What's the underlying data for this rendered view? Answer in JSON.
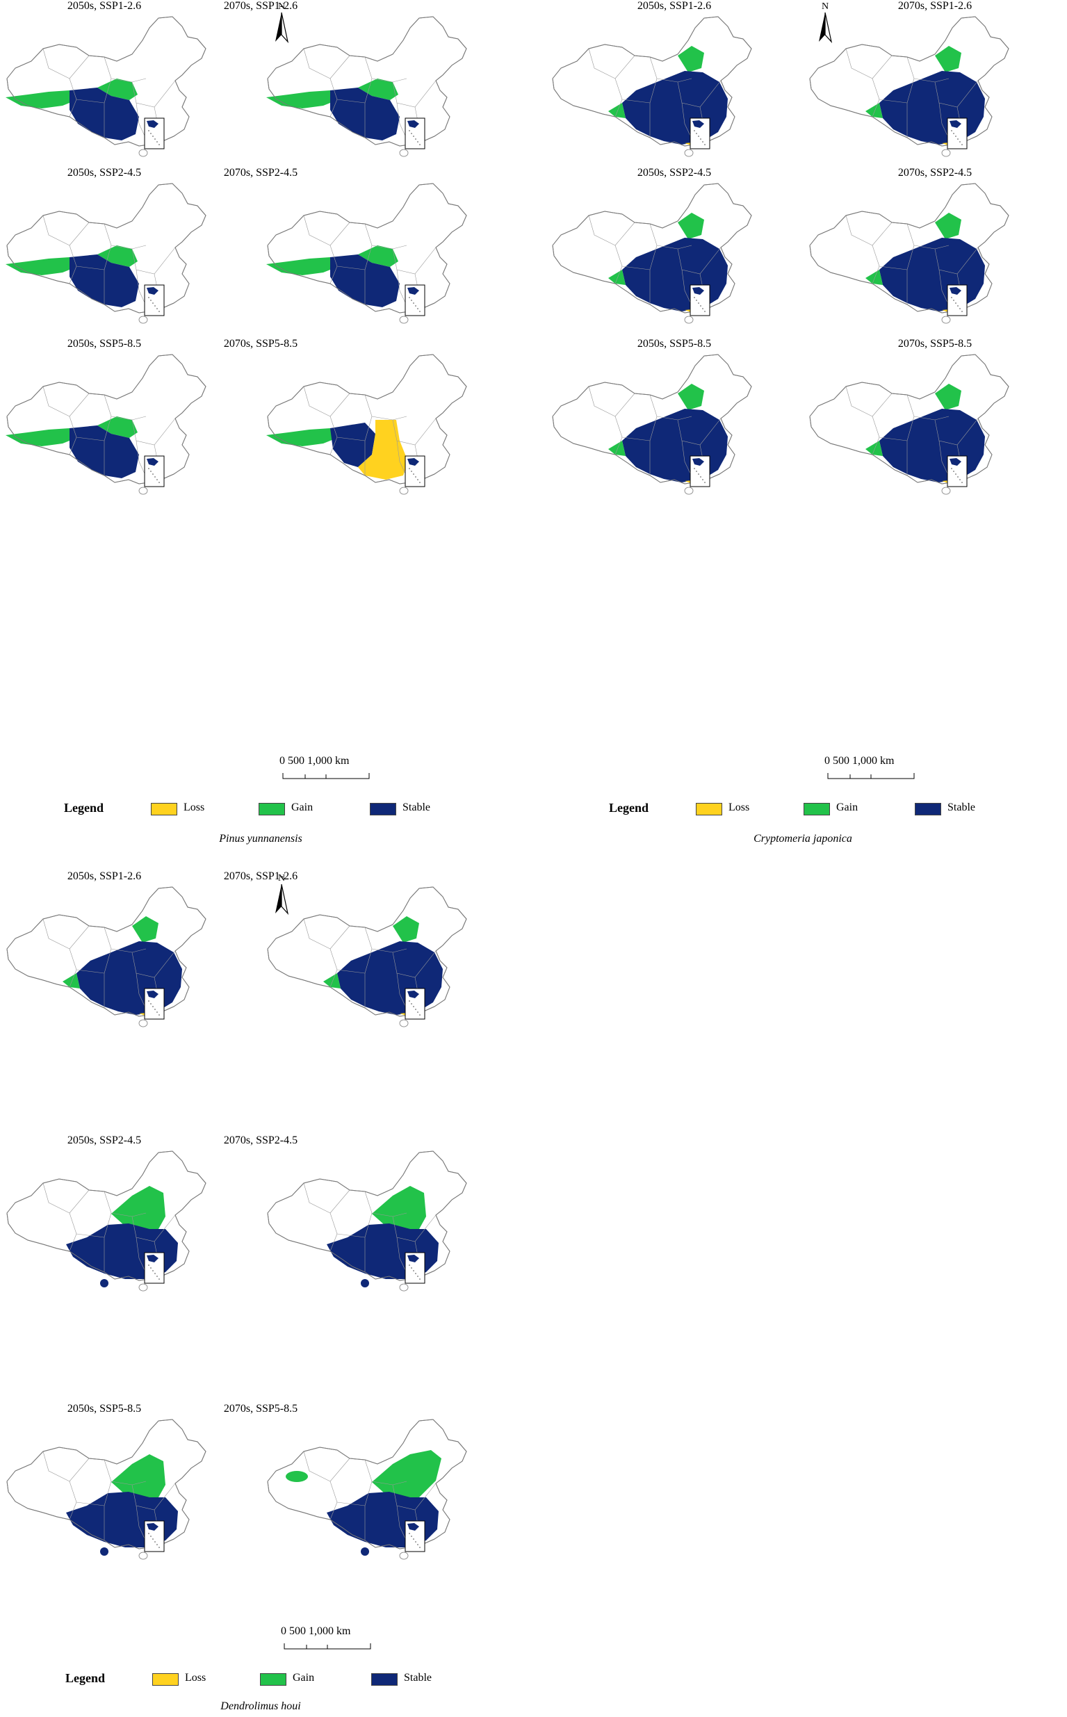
{
  "colors": {
    "loss": "#ffd21f",
    "gain": "#22c24a",
    "stable": "#0f2877",
    "outline": "#7a7a7a"
  },
  "legend": {
    "title": "Legend",
    "items": [
      {
        "label": "Loss",
        "color": "#ffd21f"
      },
      {
        "label": "Gain",
        "color": "#22c24a"
      },
      {
        "label": "Stable",
        "color": "#0f2877"
      }
    ]
  },
  "north_arrow": {
    "letter": "N"
  },
  "scale_bar": {
    "text": "0    500 1,000 km"
  },
  "panel_groups": [
    {
      "species": "Pinus yunnanensis",
      "maps": [
        {
          "title": "2050s, SSP1-2.6",
          "variant": "pinus"
        },
        {
          "title": "2070s, SSP1-2.6",
          "variant": "pinus"
        },
        {
          "title": "2050s, SSP2-4.5",
          "variant": "pinus"
        },
        {
          "title": "2070s, SSP2-4.5",
          "variant": "pinus"
        },
        {
          "title": "2050s, SSP5-8.5",
          "variant": "pinus"
        },
        {
          "title": "2070s, SSP5-8.5",
          "variant": "pinus-loss"
        }
      ]
    },
    {
      "species": "Cryptomeria japonica",
      "maps": [
        {
          "title": "2050s, SSP1-2.6",
          "variant": "crypto"
        },
        {
          "title": "2070s, SSP1-2.6",
          "variant": "crypto"
        },
        {
          "title": "2050s, SSP2-4.5",
          "variant": "crypto"
        },
        {
          "title": "2070s, SSP2-4.5",
          "variant": "crypto"
        },
        {
          "title": "2050s, SSP5-8.5",
          "variant": "crypto"
        },
        {
          "title": "2070s, SSP5-8.5",
          "variant": "crypto"
        }
      ]
    },
    {
      "species": "Dendrolimus houi",
      "maps": [
        {
          "title": "2050s, SSP1-2.6",
          "variant": "crypto"
        },
        {
          "title": "2070s, SSP1-2.6",
          "variant": "crypto"
        },
        {
          "title": "2050s, SSP2-4.5",
          "variant": "dendro"
        },
        {
          "title": "2070s, SSP2-4.5",
          "variant": "dendro"
        },
        {
          "title": "2050s, SSP5-8.5",
          "variant": "dendro"
        },
        {
          "title": "2070s, SSP5-8.5",
          "variant": "dendro-tibet"
        }
      ]
    }
  ]
}
